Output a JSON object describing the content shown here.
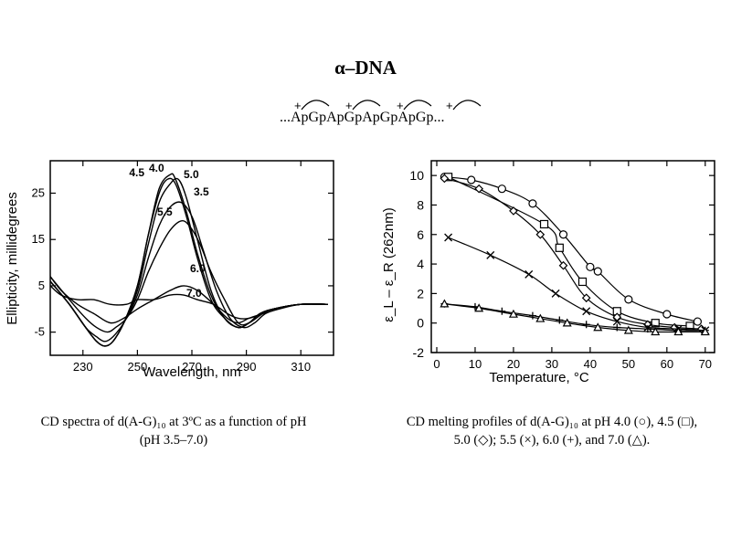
{
  "header": {
    "title": "α–DNA",
    "sequence": "...ApGpApGpApGpApGp..."
  },
  "captions": {
    "left": [
      "CD spectra of d(A-G)₁₀ at 3ºC as a function of pH",
      "(pH 3.5–7.0)"
    ],
    "right": [
      "CD melting profiles of d(A-G)₁₀ at pH 4.0 (○), 4.5 (□),",
      "5.0 (◇); 5.5 (×), 6.0 (+), and 7.0 (△)."
    ]
  },
  "chart_data": [
    {
      "type": "line",
      "title": "",
      "xlabel": "Wavelength, nm",
      "ylabel": "Ellipticity, millidegrees",
      "xlim": [
        218,
        322
      ],
      "ylim": [
        -10,
        32
      ],
      "xticks": [
        230,
        250,
        270,
        290,
        310
      ],
      "yticks": [
        -5,
        5,
        15,
        25
      ],
      "series": [
        {
          "name": "4.0",
          "x": [
            218,
            225,
            231,
            235,
            238,
            241,
            245,
            250,
            254,
            258,
            262,
            264,
            268,
            272,
            277,
            282,
            287,
            291,
            295,
            300,
            310,
            320
          ],
          "y": [
            6,
            1,
            -4,
            -7,
            -8,
            -7,
            -3,
            5,
            16,
            26,
            29,
            28,
            21,
            12,
            3,
            -2,
            -4,
            -3,
            -1,
            0,
            1,
            1
          ]
        },
        {
          "name": "4.5",
          "x": [
            218,
            225,
            231,
            235,
            238,
            241,
            245,
            250,
            254,
            258,
            261,
            264,
            268,
            272,
            277,
            282,
            287,
            291,
            295,
            300,
            310,
            320
          ],
          "y": [
            6,
            1,
            -4,
            -7,
            -8,
            -7,
            -3,
            5,
            16,
            25,
            28,
            27,
            20,
            11,
            2,
            -2,
            -4,
            -3,
            -1,
            0,
            1,
            1
          ]
        },
        {
          "name": "5.0",
          "x": [
            218,
            225,
            231,
            235,
            238,
            241,
            245,
            250,
            254,
            258,
            262,
            265,
            268,
            272,
            277,
            282,
            287,
            291,
            295,
            300,
            310,
            320
          ],
          "y": [
            6,
            1,
            -4,
            -7,
            -8,
            -7,
            -3,
            4,
            14,
            23,
            27,
            28,
            24,
            15,
            4,
            -2,
            -4,
            -3,
            -1,
            0,
            1,
            1
          ]
        },
        {
          "name": "3.5",
          "x": [
            218,
            225,
            231,
            235,
            238,
            241,
            245,
            250,
            254,
            258,
            262,
            266,
            270,
            274,
            279,
            284,
            289,
            293,
            297,
            302,
            310,
            320
          ],
          "y": [
            6,
            1,
            -4,
            -6,
            -7,
            -6,
            -3,
            3,
            11,
            18,
            22,
            23,
            20,
            13,
            4,
            -2,
            -4,
            -3,
            -1,
            0,
            1,
            1
          ]
        },
        {
          "name": "5.5",
          "x": [
            218,
            225,
            231,
            235,
            239,
            242,
            246,
            250,
            254,
            258,
            262,
            266,
            269,
            273,
            277,
            282,
            287,
            291,
            296,
            300,
            310,
            320
          ],
          "y": [
            7,
            2,
            -2,
            -4,
            -5,
            -4,
            -2,
            2,
            8,
            13,
            17,
            19,
            18,
            14,
            8,
            2,
            -3,
            -3,
            -1,
            0,
            1,
            1
          ]
        },
        {
          "name": "6.0",
          "x": [
            218,
            222,
            228,
            234,
            240,
            245,
            250,
            256,
            262,
            267,
            272,
            278,
            283,
            287,
            291,
            296,
            300,
            310,
            320
          ],
          "y": [
            7,
            4,
            1,
            -1,
            -3,
            -2,
            0,
            2,
            4,
            5,
            4,
            1,
            -2,
            -3,
            -2,
            -1,
            0,
            1,
            1
          ]
        },
        {
          "name": "7.0",
          "x": [
            218,
            222,
            228,
            234,
            240,
            246,
            250,
            256,
            262,
            267,
            272,
            278,
            283,
            287,
            291,
            296,
            300,
            310,
            320
          ],
          "y": [
            5,
            3,
            2,
            2,
            1,
            1,
            2,
            2,
            3,
            3,
            2,
            1,
            -1,
            -2,
            -2,
            -1,
            0,
            1,
            1
          ]
        }
      ]
    },
    {
      "type": "line",
      "title": "",
      "xlabel": "Temperature, °C",
      "ylabel": "ε_L – ε_R (262nm)",
      "xlim": [
        0,
        71
      ],
      "ylim": [
        -2,
        11
      ],
      "xticks": [
        0,
        10,
        20,
        30,
        40,
        50,
        60,
        70
      ],
      "yticks": [
        -2,
        0,
        2,
        4,
        6,
        8,
        10
      ],
      "series": [
        {
          "name": "pH 4.0",
          "marker": "circle",
          "x": [
            2,
            9,
            17,
            25,
            33,
            40,
            42,
            50,
            60,
            68
          ],
          "y": [
            9.9,
            9.7,
            9.1,
            8.1,
            6.0,
            3.8,
            3.5,
            1.6,
            0.6,
            0.1
          ]
        },
        {
          "name": "pH 4.5",
          "marker": "square",
          "x": [
            3,
            28,
            32,
            38,
            47,
            57,
            66
          ],
          "y": [
            9.9,
            6.7,
            5.1,
            2.8,
            0.8,
            0.0,
            -0.2
          ]
        },
        {
          "name": "pH 5.0",
          "marker": "diamond",
          "x": [
            2,
            11,
            20,
            27,
            33,
            39,
            47,
            55,
            62,
            69
          ],
          "y": [
            9.8,
            9.1,
            7.6,
            6.0,
            3.9,
            1.7,
            0.4,
            -0.1,
            -0.3,
            -0.4
          ]
        },
        {
          "name": "pH 5.5",
          "marker": "x",
          "x": [
            3,
            14,
            24,
            31,
            39,
            47,
            55,
            63,
            70
          ],
          "y": [
            5.8,
            4.6,
            3.3,
            2.0,
            0.8,
            0.1,
            -0.3,
            -0.4,
            -0.5
          ]
        },
        {
          "name": "pH 6.0",
          "marker": "plus",
          "x": [
            2,
            10,
            17,
            25,
            32,
            39,
            47,
            55,
            63,
            70
          ],
          "y": [
            1.3,
            1.1,
            0.8,
            0.5,
            0.2,
            -0.1,
            -0.3,
            -0.4,
            -0.5,
            -0.5
          ]
        },
        {
          "name": "pH 7.0",
          "marker": "triangle",
          "x": [
            2,
            11,
            20,
            27,
            34,
            42,
            50,
            57,
            63,
            70
          ],
          "y": [
            1.3,
            1.0,
            0.6,
            0.3,
            0.0,
            -0.3,
            -0.5,
            -0.6,
            -0.6,
            -0.6
          ]
        }
      ]
    }
  ]
}
